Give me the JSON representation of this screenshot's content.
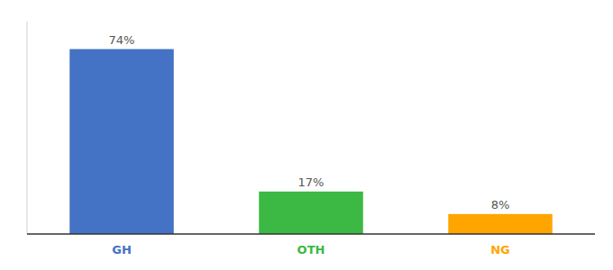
{
  "chart_data": {
    "type": "bar",
    "categories": [
      "GH",
      "OTH",
      "NG"
    ],
    "values": [
      74,
      17,
      8
    ],
    "value_labels": [
      "74%",
      "17%",
      "8%"
    ],
    "colors": [
      "#4472c4",
      "#3cb844",
      "#ffa500"
    ],
    "ylim": [
      0,
      85
    ],
    "data_labels": true,
    "tick_labels": "x"
  }
}
